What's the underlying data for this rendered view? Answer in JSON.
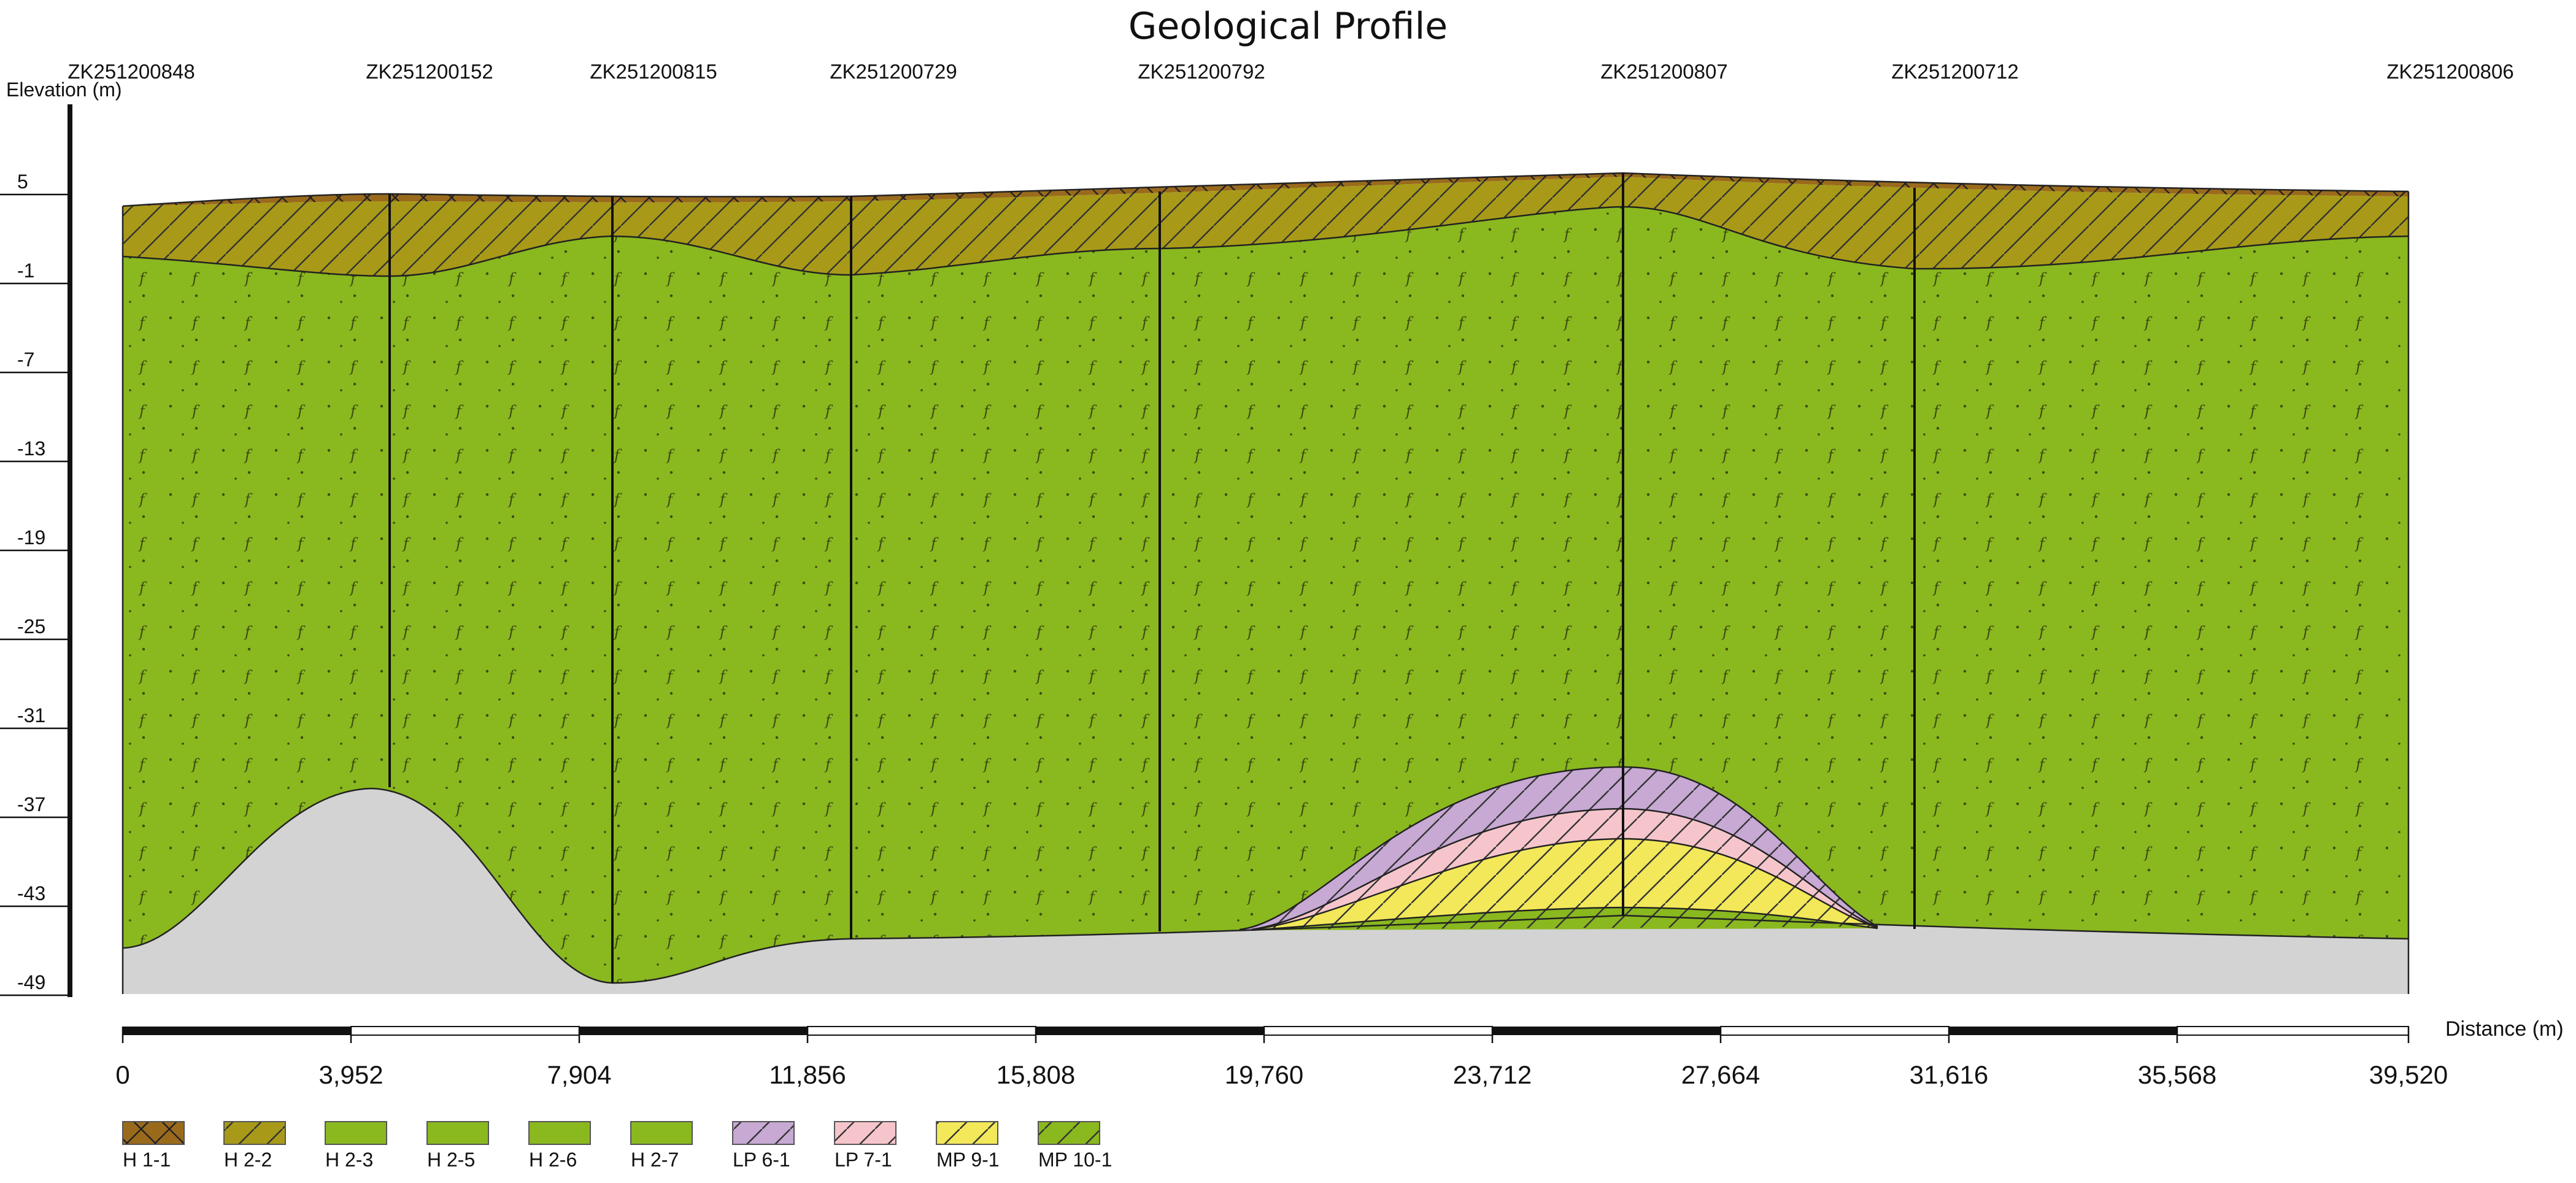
{
  "figure": {
    "title": "Geological Profile",
    "y_axis_label": "Elevation (m)",
    "x_axis_label": "Distance (m)"
  },
  "boreholes": [
    {
      "id": "ZK251200848",
      "distance": 0
    },
    {
      "id": "ZK251200152",
      "distance": 4650
    },
    {
      "id": "ZK251200815",
      "distance": 8500
    },
    {
      "id": "ZK251200729",
      "distance": 12620
    },
    {
      "id": "ZK251200792",
      "distance": 17860
    },
    {
      "id": "ZK251200807",
      "distance": 25850
    },
    {
      "id": "ZK251200712",
      "distance": 30850
    },
    {
      "id": "ZK251200806",
      "distance": 39520
    }
  ],
  "y_ticks": [
    "5",
    "-1",
    "-7",
    "-13",
    "-19",
    "-25",
    "-31",
    "-37",
    "-43",
    "-49"
  ],
  "x_ticks": [
    "0",
    "3,952",
    "7,904",
    "11,856",
    "15,808",
    "19,760",
    "23,712",
    "27,664",
    "31,616",
    "35,568",
    "39,520"
  ],
  "legend": [
    {
      "code": "H 1-1",
      "color": "#9a6a1c",
      "pattern": "cross"
    },
    {
      "code": "H 2-2",
      "color": "#a89a18",
      "pattern": "hatch"
    },
    {
      "code": "H 2-3",
      "color": "#8ab81f",
      "pattern": "none"
    },
    {
      "code": "H 2-5",
      "color": "#8ab81f",
      "pattern": "none"
    },
    {
      "code": "H 2-6",
      "color": "#8ab81f",
      "pattern": "none"
    },
    {
      "code": "H 2-7",
      "color": "#8ab81f",
      "pattern": "none"
    },
    {
      "code": "LP 6-1",
      "color": "#c7a9d4",
      "pattern": "hatch"
    },
    {
      "code": "LP 7-1",
      "color": "#f6c5cc",
      "pattern": "hatch"
    },
    {
      "code": "MP 9-1",
      "color": "#f2e85a",
      "pattern": "hatch"
    },
    {
      "code": "MP 10-1",
      "color": "#8ab81f",
      "pattern": "hatch"
    }
  ],
  "colors": {
    "h1_1": "#9a6a1c",
    "h2_2": "#a89a18",
    "green_main": "#8ab81f",
    "lp6_1": "#c7a9d4",
    "lp7_1": "#f6c5cc",
    "mp9_1": "#f2e85a",
    "bedrock": "#d3d3d3"
  }
}
